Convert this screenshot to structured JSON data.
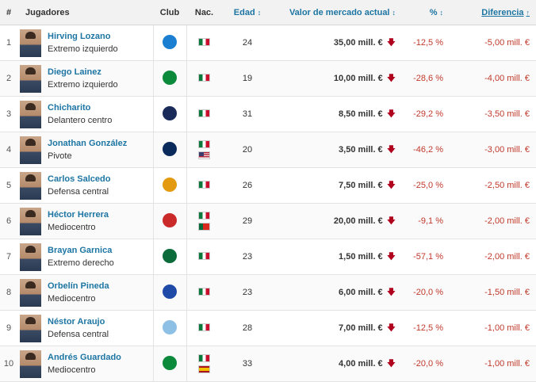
{
  "headers": {
    "num": "#",
    "player": "Jugadores",
    "club": "Club",
    "nat": "Nac.",
    "age": "Edad",
    "value": "Valor de mercado actual",
    "pct": "%",
    "diff": "Diferencia"
  },
  "sort_icons": {
    "neutral": "↕",
    "ascending": "↑"
  },
  "trend_icon": "arrow-down-icon",
  "rows": [
    {
      "num": "1",
      "name": "Hirving Lozano",
      "position": "Extremo izquierdo",
      "club": "napoli",
      "nat": [
        "mx"
      ],
      "age": "24",
      "value": "35,00 mill. €",
      "pct": "-12,5 %",
      "diff": "-5,00 mill. €"
    },
    {
      "num": "2",
      "name": "Diego Lainez",
      "position": "Extremo izquierdo",
      "club": "betis",
      "nat": [
        "mx"
      ],
      "age": "19",
      "value": "10,00 mill. €",
      "pct": "-28,6 %",
      "diff": "-4,00 mill. €"
    },
    {
      "num": "3",
      "name": "Chicharito",
      "position": "Delantero centro",
      "club": "la-galaxy",
      "nat": [
        "mx"
      ],
      "age": "31",
      "value": "8,50 mill. €",
      "pct": "-29,2 %",
      "diff": "-3,50 mill. €"
    },
    {
      "num": "4",
      "name": "Jonathan González",
      "position": "Pivote",
      "club": "monterrey",
      "nat": [
        "mx",
        "us"
      ],
      "age": "20",
      "value": "3,50 mill. €",
      "pct": "-46,2 %",
      "diff": "-3,00 mill. €"
    },
    {
      "num": "5",
      "name": "Carlos Salcedo",
      "position": "Defensa central",
      "club": "tigres",
      "nat": [
        "mx"
      ],
      "age": "26",
      "value": "7,50 mill. €",
      "pct": "-25,0 %",
      "diff": "-2,50 mill. €"
    },
    {
      "num": "6",
      "name": "Héctor Herrera",
      "position": "Mediocentro",
      "club": "atletico",
      "nat": [
        "mx",
        "pt"
      ],
      "age": "29",
      "value": "20,00 mill. €",
      "pct": "-9,1 %",
      "diff": "-2,00 mill. €"
    },
    {
      "num": "7",
      "name": "Brayan Garnica",
      "position": "Extremo derecho",
      "club": "santos",
      "nat": [
        "mx"
      ],
      "age": "23",
      "value": "1,50 mill. €",
      "pct": "-57,1 %",
      "diff": "-2,00 mill. €"
    },
    {
      "num": "8",
      "name": "Orbelín Pineda",
      "position": "Mediocentro",
      "club": "cruz-azul",
      "nat": [
        "mx"
      ],
      "age": "23",
      "value": "6,00 mill. €",
      "pct": "-20,0 %",
      "diff": "-1,50 mill. €"
    },
    {
      "num": "9",
      "name": "Néstor Araujo",
      "position": "Defensa central",
      "club": "celta",
      "nat": [
        "mx"
      ],
      "age": "28",
      "value": "7,00 mill. €",
      "pct": "-12,5 %",
      "diff": "-1,00 mill. €"
    },
    {
      "num": "10",
      "name": "Andrés Guardado",
      "position": "Mediocentro",
      "club": "betis",
      "nat": [
        "mx",
        "es"
      ],
      "age": "33",
      "value": "4,00 mill. €",
      "pct": "-20,0 %",
      "diff": "-1,00 mill. €"
    }
  ],
  "club_colors": {
    "napoli": "#1a7fd1",
    "betis": "#0b8a3b",
    "la-galaxy": "#1a2b5a",
    "monterrey": "#0a2a5c",
    "tigres": "#e39a10",
    "atletico": "#cb2a2a",
    "santos": "#0b6b3a",
    "cruz-azul": "#1f4aa8",
    "celta": "#8ec0e6"
  }
}
